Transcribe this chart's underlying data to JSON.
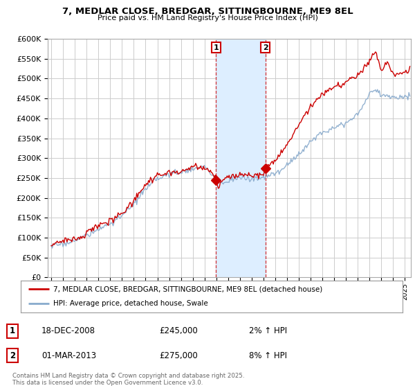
{
  "title": "7, MEDLAR CLOSE, BREDGAR, SITTINGBOURNE, ME9 8EL",
  "subtitle": "Price paid vs. HM Land Registry's House Price Index (HPI)",
  "ylim": [
    0,
    600000
  ],
  "yticks": [
    0,
    50000,
    100000,
    150000,
    200000,
    250000,
    300000,
    350000,
    400000,
    450000,
    500000,
    550000,
    600000
  ],
  "ytick_labels": [
    "£0",
    "£50K",
    "£100K",
    "£150K",
    "£200K",
    "£250K",
    "£300K",
    "£350K",
    "£400K",
    "£450K",
    "£500K",
    "£550K",
    "£600K"
  ],
  "xlim_start": 1994.7,
  "xlim_end": 2025.5,
  "transaction1_x": 2008.97,
  "transaction1_y": 245000,
  "transaction1_label": "1",
  "transaction1_date": "18-DEC-2008",
  "transaction1_price": "£245,000",
  "transaction1_hpi": "2% ↑ HPI",
  "transaction2_x": 2013.17,
  "transaction2_y": 275000,
  "transaction2_label": "2",
  "transaction2_date": "01-MAR-2013",
  "transaction2_price": "£275,000",
  "transaction2_hpi": "8% ↑ HPI",
  "red_color": "#cc0000",
  "blue_color": "#88aacc",
  "shade_color": "#ddeeff",
  "background_color": "#ffffff",
  "grid_color": "#cccccc",
  "legend_line1": "7, MEDLAR CLOSE, BREDGAR, SITTINGBOURNE, ME9 8EL (detached house)",
  "legend_line2": "HPI: Average price, detached house, Swale",
  "footer": "Contains HM Land Registry data © Crown copyright and database right 2025.\nThis data is licensed under the Open Government Licence v3.0."
}
